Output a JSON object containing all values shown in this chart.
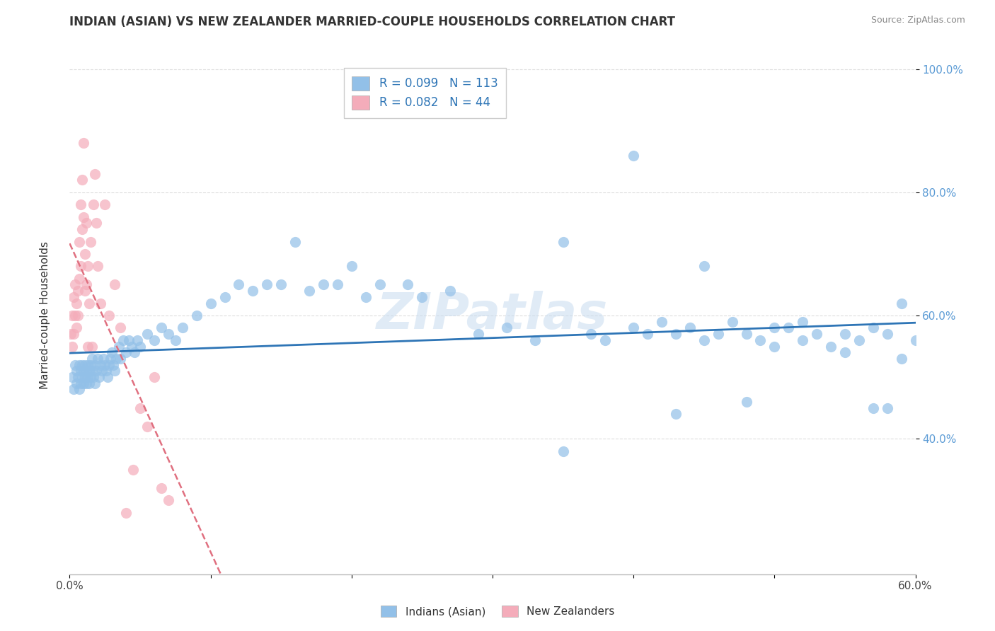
{
  "title": "INDIAN (ASIAN) VS NEW ZEALANDER MARRIED-COUPLE HOUSEHOLDS CORRELATION CHART",
  "source": "Source: ZipAtlas.com",
  "ylabel": "Married-couple Households",
  "legend_label1": "Indians (Asian)",
  "legend_label2": "New Zealanders",
  "R1": 0.099,
  "N1": 113,
  "R2": 0.082,
  "N2": 44,
  "xmin": 0.0,
  "xmax": 0.6,
  "ymin": 0.18,
  "ymax": 1.02,
  "yticks": [
    0.4,
    0.6,
    0.8,
    1.0
  ],
  "ytick_labels": [
    "40.0%",
    "60.0%",
    "80.0%",
    "100.0%"
  ],
  "xtick_labels_show": [
    "0.0%",
    "60.0%"
  ],
  "color_blue": "#92C0E8",
  "color_pink": "#F4ACBA",
  "color_blue_line": "#2E75B6",
  "color_pink_line": "#E07080",
  "grid_color": "#DDDDDD",
  "watermark_text": "ZIPatlas",
  "watermark_color": "#C8DCF0",
  "blue_x": [
    0.002,
    0.003,
    0.004,
    0.005,
    0.005,
    0.006,
    0.007,
    0.007,
    0.008,
    0.008,
    0.009,
    0.009,
    0.01,
    0.01,
    0.011,
    0.011,
    0.012,
    0.012,
    0.013,
    0.013,
    0.014,
    0.014,
    0.015,
    0.015,
    0.016,
    0.016,
    0.017,
    0.018,
    0.018,
    0.019,
    0.02,
    0.021,
    0.022,
    0.023,
    0.024,
    0.025,
    0.026,
    0.027,
    0.028,
    0.029,
    0.03,
    0.031,
    0.032,
    0.033,
    0.035,
    0.036,
    0.038,
    0.04,
    0.042,
    0.044,
    0.046,
    0.048,
    0.05,
    0.055,
    0.06,
    0.065,
    0.07,
    0.075,
    0.08,
    0.09,
    0.1,
    0.11,
    0.12,
    0.13,
    0.14,
    0.15,
    0.16,
    0.17,
    0.18,
    0.19,
    0.2,
    0.21,
    0.22,
    0.24,
    0.25,
    0.27,
    0.29,
    0.31,
    0.33,
    0.35,
    0.37,
    0.38,
    0.4,
    0.41,
    0.42,
    0.43,
    0.44,
    0.45,
    0.46,
    0.47,
    0.48,
    0.49,
    0.5,
    0.51,
    0.52,
    0.53,
    0.54,
    0.55,
    0.56,
    0.57,
    0.35,
    0.4,
    0.43,
    0.45,
    0.48,
    0.5,
    0.52,
    0.55,
    0.57,
    0.58,
    0.58,
    0.59,
    0.59,
    0.6
  ],
  "blue_y": [
    0.5,
    0.48,
    0.52,
    0.51,
    0.49,
    0.5,
    0.52,
    0.48,
    0.51,
    0.49,
    0.52,
    0.5,
    0.51,
    0.49,
    0.52,
    0.5,
    0.51,
    0.49,
    0.52,
    0.5,
    0.51,
    0.49,
    0.52,
    0.5,
    0.51,
    0.53,
    0.5,
    0.52,
    0.49,
    0.51,
    0.53,
    0.5,
    0.52,
    0.51,
    0.53,
    0.52,
    0.51,
    0.5,
    0.52,
    0.53,
    0.54,
    0.52,
    0.51,
    0.53,
    0.55,
    0.53,
    0.56,
    0.54,
    0.56,
    0.55,
    0.54,
    0.56,
    0.55,
    0.57,
    0.56,
    0.58,
    0.57,
    0.56,
    0.58,
    0.6,
    0.62,
    0.63,
    0.65,
    0.64,
    0.65,
    0.65,
    0.72,
    0.64,
    0.65,
    0.65,
    0.68,
    0.63,
    0.65,
    0.65,
    0.63,
    0.64,
    0.57,
    0.58,
    0.56,
    0.38,
    0.57,
    0.56,
    0.58,
    0.57,
    0.59,
    0.57,
    0.58,
    0.56,
    0.57,
    0.59,
    0.57,
    0.56,
    0.58,
    0.58,
    0.56,
    0.57,
    0.55,
    0.57,
    0.56,
    0.45,
    0.72,
    0.86,
    0.44,
    0.68,
    0.46,
    0.55,
    0.59,
    0.54,
    0.58,
    0.57,
    0.45,
    0.62,
    0.53,
    0.56
  ],
  "pink_x": [
    0.001,
    0.002,
    0.002,
    0.003,
    0.003,
    0.004,
    0.004,
    0.005,
    0.005,
    0.006,
    0.006,
    0.007,
    0.007,
    0.008,
    0.008,
    0.009,
    0.009,
    0.01,
    0.01,
    0.011,
    0.011,
    0.012,
    0.012,
    0.013,
    0.013,
    0.014,
    0.015,
    0.016,
    0.017,
    0.018,
    0.019,
    0.02,
    0.022,
    0.025,
    0.028,
    0.032,
    0.036,
    0.04,
    0.045,
    0.05,
    0.055,
    0.06,
    0.065,
    0.07
  ],
  "pink_y": [
    0.57,
    0.6,
    0.55,
    0.63,
    0.57,
    0.65,
    0.6,
    0.62,
    0.58,
    0.64,
    0.6,
    0.66,
    0.72,
    0.68,
    0.78,
    0.74,
    0.82,
    0.76,
    0.88,
    0.7,
    0.64,
    0.75,
    0.65,
    0.55,
    0.68,
    0.62,
    0.72,
    0.55,
    0.78,
    0.83,
    0.75,
    0.68,
    0.62,
    0.78,
    0.6,
    0.65,
    0.58,
    0.28,
    0.35,
    0.45,
    0.42,
    0.5,
    0.32,
    0.3
  ]
}
